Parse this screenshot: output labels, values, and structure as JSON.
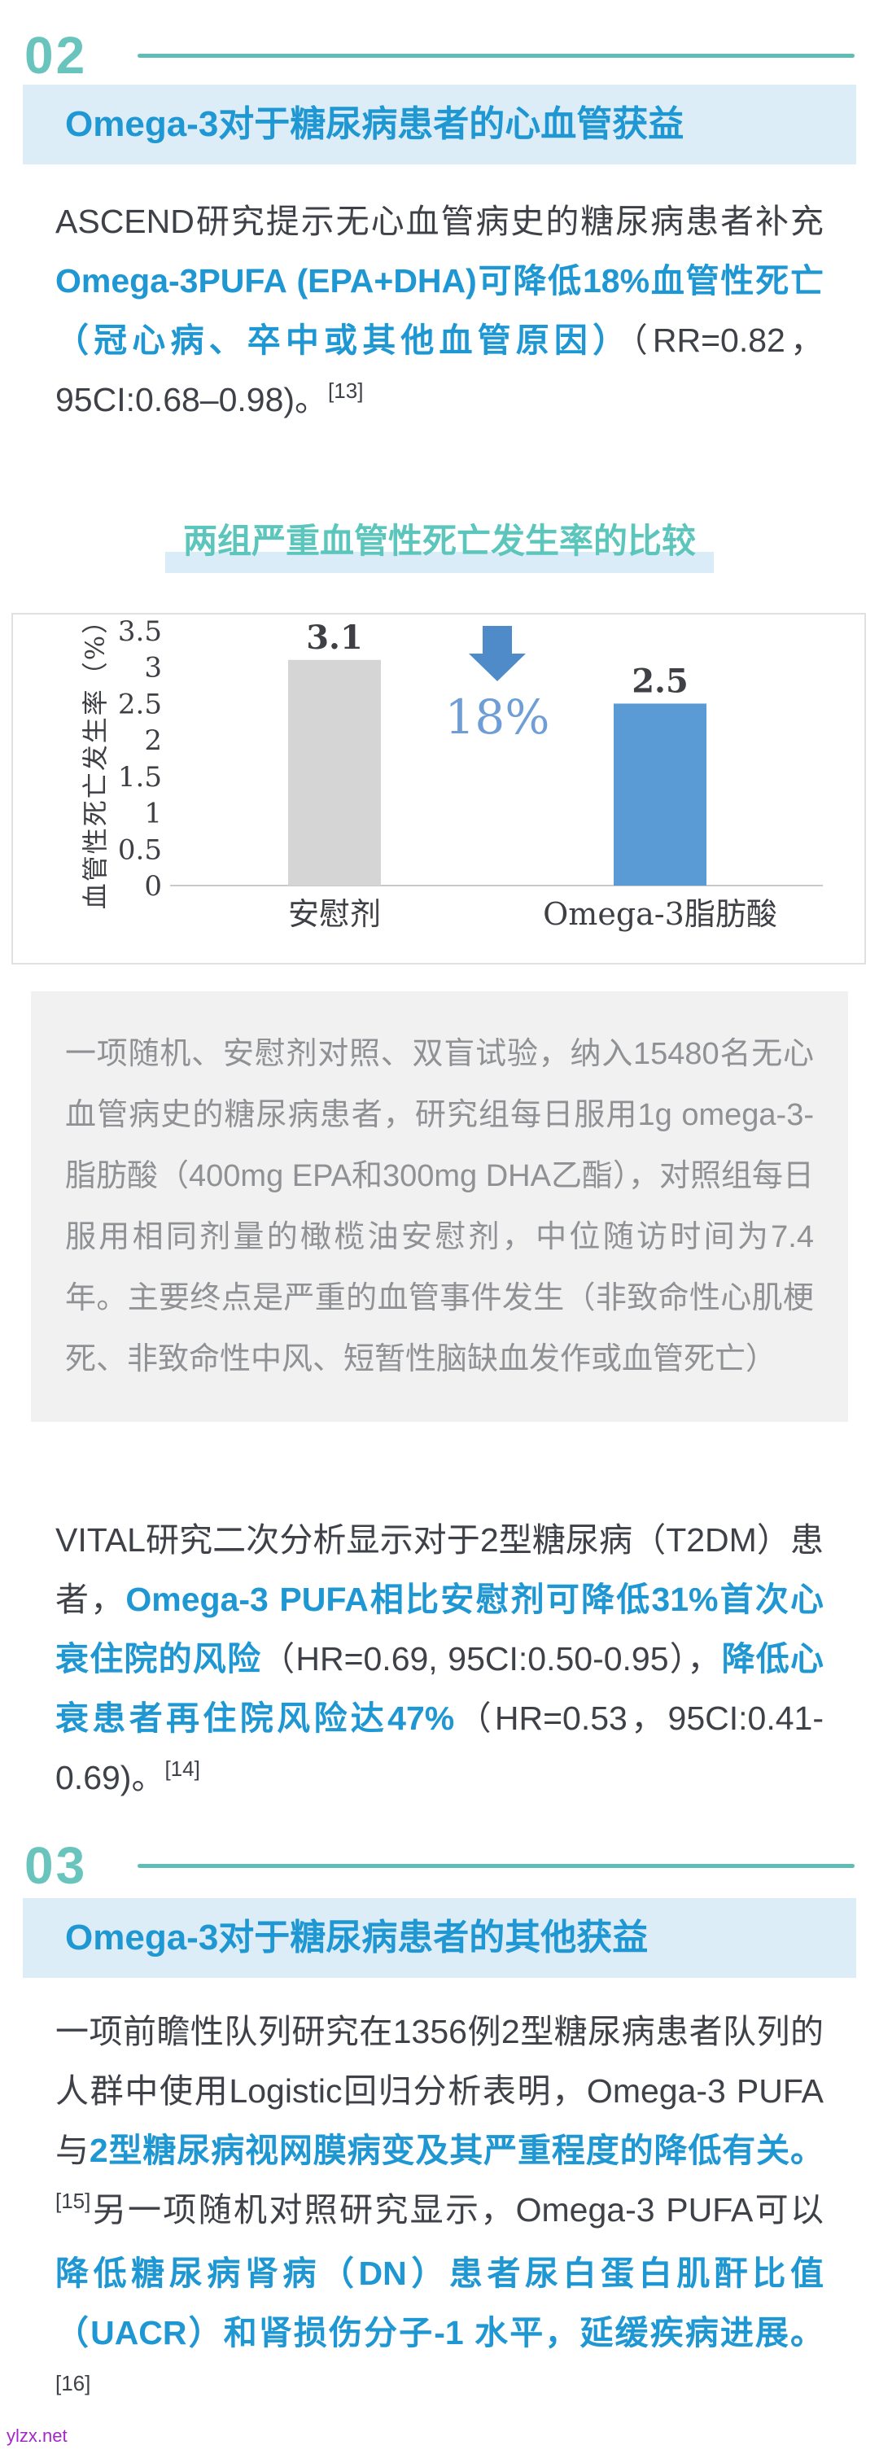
{
  "colors": {
    "teal": "#68C4BC",
    "teal_line": "#5FBDB6",
    "accent_blue": "#1E97D3",
    "light_blue_bg": "#DCEDF8",
    "dark_text": "#3F4148",
    "gray_box_bg": "#F1F1F1",
    "gray_text": "#8F9194"
  },
  "section_02": {
    "number": "02",
    "title": "Omega-3对于糖尿病患者的心血管获益",
    "paragraph_runs": [
      {
        "style": "dark",
        "text": "ASCEND研究提示无心血管病史的糖尿病患者补充"
      },
      {
        "style": "blue",
        "text": "Omega-3PUFA (EPA+DHA)可降低18%血管性死亡（冠心病、卒中或其他血管原因）"
      },
      {
        "style": "dark",
        "text": "（RR=0.82，95CI:0.68–0.98)。"
      },
      {
        "style": "sup",
        "text": "[13]"
      }
    ]
  },
  "chart_section": {
    "heading": "两组严重血管性死亡发生率的比较"
  },
  "chart_data": {
    "type": "bar",
    "title": "两组严重血管性死亡发生率的比较",
    "categories": [
      "安慰剂",
      "Omega-3脂肪酸"
    ],
    "values": [
      3.1,
      2.5
    ],
    "value_labels": [
      "3.1",
      "2.5"
    ],
    "bar_colors": [
      "#D5D5D5",
      "#5B9BD5"
    ],
    "ylabel": "血管性死亡发生率（%）",
    "xlabel": "",
    "ylim": [
      0,
      3.5
    ],
    "yticks": [
      "0",
      "0.5",
      "1",
      "1.5",
      "2",
      "2.5",
      "3",
      "3.5"
    ],
    "grid": false,
    "legend": "none",
    "annotation": {
      "icon": "down-arrow-icon",
      "text": "18%",
      "arrow_color": "#4F8BC9",
      "text_color": "#6F9ED6"
    }
  },
  "study_box": {
    "text": "一项随机、安慰剂对照、双盲试验，纳入15480名无心血管病史的糖尿病患者，研究组每日服用1g omega-3-脂肪酸（400mg EPA和300mg DHA乙酯），对照组每日服用相同剂量的橄榄油安慰剂，中位随访时间为7.4年。主要终点是严重的血管事件发生（非致命性心肌梗死、非致命性中风、短暂性脑缺血发作或血管死亡）"
  },
  "vital_paragraph_runs": [
    {
      "style": "dark",
      "text": "VITAL研究二次分析显示对于2型糖尿病（T2DM）患者，"
    },
    {
      "style": "blue",
      "text": "Omega-3 PUFA相比安慰剂可降低31%首次心衰住院的风险"
    },
    {
      "style": "dark",
      "text": "（HR=0.69, 95CI:0.50-0.95），"
    },
    {
      "style": "blue",
      "text": "降低心衰患者再住院风险达47%"
    },
    {
      "style": "dark",
      "text": "（HR=0.53，95CI:0.41-0.69)。"
    },
    {
      "style": "sup",
      "text": "[14]"
    }
  ],
  "section_03": {
    "number": "03",
    "title": "Omega-3对于糖尿病患者的其他获益",
    "paragraph_runs": [
      {
        "style": "dark",
        "text": "一项前瞻性队列研究在1356例2型糖尿病患者队列的人群中使用Logistic回归分析表明，Omega-3 PUFA与"
      },
      {
        "style": "blue",
        "text": "2型糖尿病视网膜病变及其严重程度的降低有关。"
      },
      {
        "style": "sup",
        "text": "[15]"
      },
      {
        "style": "dark",
        "text": "另一项随机对照研究显示，Omega-3 PUFA可以"
      },
      {
        "style": "blue",
        "text": "降低糖尿病肾病（DN）患者尿白蛋白肌酐比值（UACR）和肾损伤分子-1 水平，延缓疾病进展。"
      },
      {
        "style": "sup",
        "text": "[16]"
      }
    ]
  },
  "watermark": {
    "text": "ylzx.net",
    "color": "#A428C8"
  }
}
